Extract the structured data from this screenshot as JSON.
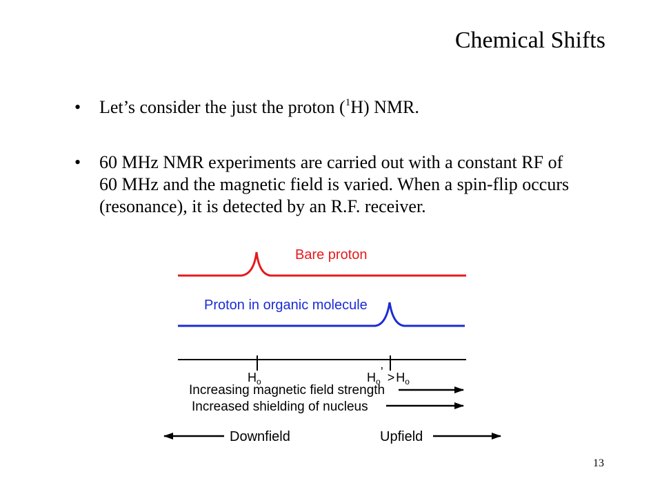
{
  "slide": {
    "title": "Chemical Shifts",
    "page_number": "13",
    "bullets": [
      {
        "pre": "Let’s consider the just the proton (",
        "sup": "1",
        "post": "H) NMR."
      },
      {
        "text": "60 MHz NMR experiments are carried out with a constant RF of 60 MHz and the magnetic field is varied. When a spin-flip occurs (resonance), it is detected by an R.F. receiver."
      }
    ],
    "bullet_glyph": "•"
  },
  "diagram": {
    "bare_label": "Bare proton",
    "organic_label": "Proton in organic molecule",
    "ho_label": "H",
    "ho_sub": "o",
    "ho_prime_label": "H",
    "ho_prime_sub": "o",
    "ho_prime_mark": "’",
    "gt": ">",
    "ho2_label": "H",
    "ho2_sub": "o",
    "increasing_label": "Increasing magnetic field strength",
    "shielding_label": "Increased shielding of nucleus",
    "downfield_label": "Downfield",
    "upfield_label": "Upfield",
    "colors": {
      "bare": "#e41a1c",
      "organic": "#1a2bd6",
      "axis": "#000000"
    }
  }
}
